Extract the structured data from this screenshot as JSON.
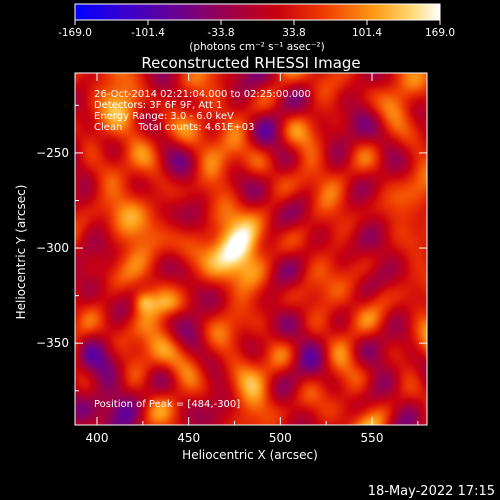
{
  "colorbar": {
    "tick_labels": [
      "-169.0",
      "-101.4",
      "-33.8",
      "33.8",
      "101.4",
      "169.0"
    ],
    "tick_values": [
      -169.0,
      -101.4,
      -33.8,
      33.8,
      101.4,
      169.0
    ],
    "range": [
      -169.0,
      169.0
    ],
    "units": "(photons cm⁻² s⁻¹ asec⁻²)",
    "colors": [
      "#0000ff",
      "#3f00c8",
      "#7a0080",
      "#b40028",
      "#e01a00",
      "#ff6a00",
      "#ffc03c",
      "#ffffff"
    ]
  },
  "chart_data": {
    "type": "heatmap",
    "title": "Reconstructed RHESSI Image",
    "xlabel": "Heliocentric X (arcsec)",
    "ylabel": "Heliocentric Y (arcsec)",
    "xlim": [
      388,
      580
    ],
    "ylim": [
      -393,
      -208
    ],
    "xticks": [
      400,
      450,
      500,
      550
    ],
    "yticks": [
      -250,
      -300,
      -350
    ],
    "xtick_labels": [
      "400",
      "450",
      "500",
      "550"
    ],
    "ytick_labels": [
      "−250",
      "−300",
      "−350"
    ],
    "annotations": [
      "26-Oct-2014 02:21:04.000 to 02:25:00.000",
      "Detectors: 3F 6F 9F, Att 1",
      "Energy Range: 3.0 - 6.0 keV",
      "Clean     Total counts: 4.61E+03"
    ],
    "peak_label": "Position of Peak = [484,-300]",
    "peak": [
      484,
      -300
    ],
    "sources": [
      {
        "x": 478,
        "y": -298,
        "value": 169,
        "sx": 14,
        "sy": 7,
        "angle": -35
      },
      {
        "x": 425,
        "y": -328,
        "value": 110,
        "sx": 4,
        "sy": 4,
        "angle": 0
      },
      {
        "x": 440,
        "y": -330,
        "value": 70,
        "sx": 6,
        "sy": 4,
        "angle": 0
      },
      {
        "x": 555,
        "y": -325,
        "value": 60,
        "sx": 5,
        "sy": 5,
        "angle": 0
      }
    ],
    "background_level": 34
  },
  "timestamp": "18-May-2022 17:15"
}
